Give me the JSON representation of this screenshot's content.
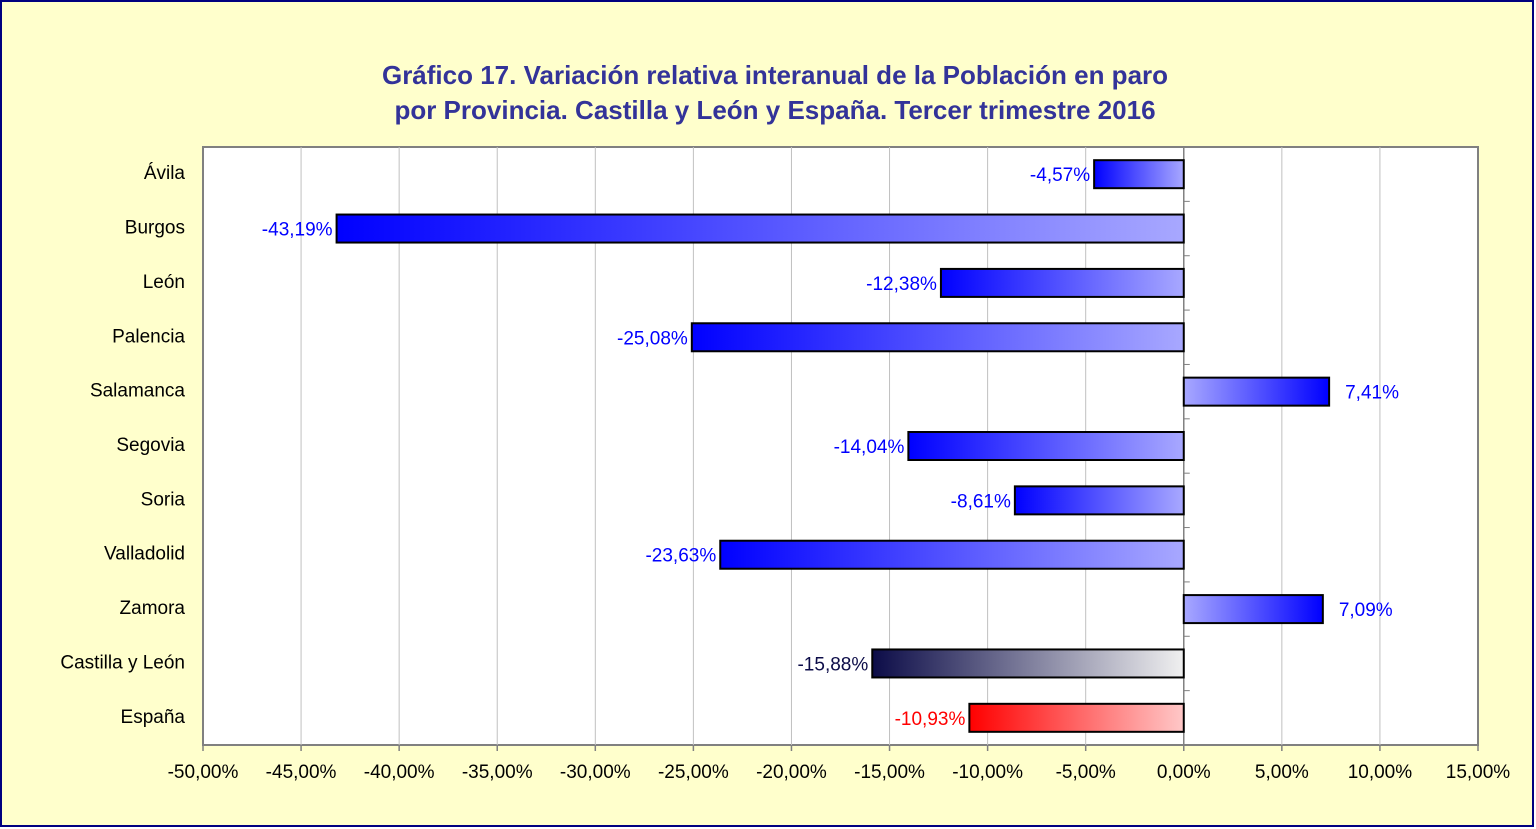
{
  "chart_data": {
    "type": "bar",
    "orientation": "horizontal",
    "title": [
      "Gráfico 17. Variación relativa interanual de la Población en paro",
      "por Provincia. Castilla y León y España. Tercer trimestre 2016"
    ],
    "categories": [
      "Ávila",
      "Burgos",
      "León",
      "Palencia",
      "Salamanca",
      "Segovia",
      "Soria",
      "Valladolid",
      "Zamora",
      "Castilla y León",
      "España"
    ],
    "values": [
      -4.57,
      -43.19,
      -12.38,
      -25.08,
      7.41,
      -14.04,
      -8.61,
      -23.63,
      7.09,
      -15.88,
      -10.93
    ],
    "value_labels": [
      "-4,57%",
      "-43,19%",
      "-12,38%",
      "-25,08%",
      "7,41%",
      "-14,04%",
      "-8,61%",
      "-23,63%",
      "7,09%",
      "-15,88%",
      "-10,93%"
    ],
    "colors": [
      [
        "#0000ff",
        "#a8a8ff"
      ],
      [
        "#0000ff",
        "#a8a8ff"
      ],
      [
        "#0000ff",
        "#a8a8ff"
      ],
      [
        "#0000ff",
        "#a8a8ff"
      ],
      [
        "#0000ff",
        "#a8a8ff"
      ],
      [
        "#0000ff",
        "#a8a8ff"
      ],
      [
        "#0000ff",
        "#a8a8ff"
      ],
      [
        "#0000ff",
        "#a8a8ff"
      ],
      [
        "#0000ff",
        "#a8a8ff"
      ],
      [
        "#0c0c48",
        "#f0f0f0"
      ],
      [
        "#ff0000",
        "#ffc8c8"
      ]
    ],
    "label_colors": [
      "#0000ff",
      "#0000ff",
      "#0000ff",
      "#0000ff",
      "#0000ff",
      "#0000ff",
      "#0000ff",
      "#0000ff",
      "#0000ff",
      "#0c0c48",
      "#ff0000"
    ],
    "xlim": [
      -50,
      15
    ],
    "xticks": [
      {
        "value": -50,
        "label": "-50,00%"
      },
      {
        "value": -45,
        "label": "-45,00%"
      },
      {
        "value": -40,
        "label": "-40,00%"
      },
      {
        "value": -35,
        "label": "-35,00%"
      },
      {
        "value": -30,
        "label": "-30,00%"
      },
      {
        "value": -25,
        "label": "-25,00%"
      },
      {
        "value": -20,
        "label": "-20,00%"
      },
      {
        "value": -15,
        "label": "-15,00%"
      },
      {
        "value": -10,
        "label": "-10,00%"
      },
      {
        "value": -5,
        "label": "-5,00%"
      },
      {
        "value": 0,
        "label": "0,00%"
      },
      {
        "value": 5,
        "label": "5,00%"
      },
      {
        "value": 10,
        "label": "10,00%"
      },
      {
        "value": 15,
        "label": "15,00%"
      }
    ],
    "grid": true
  }
}
